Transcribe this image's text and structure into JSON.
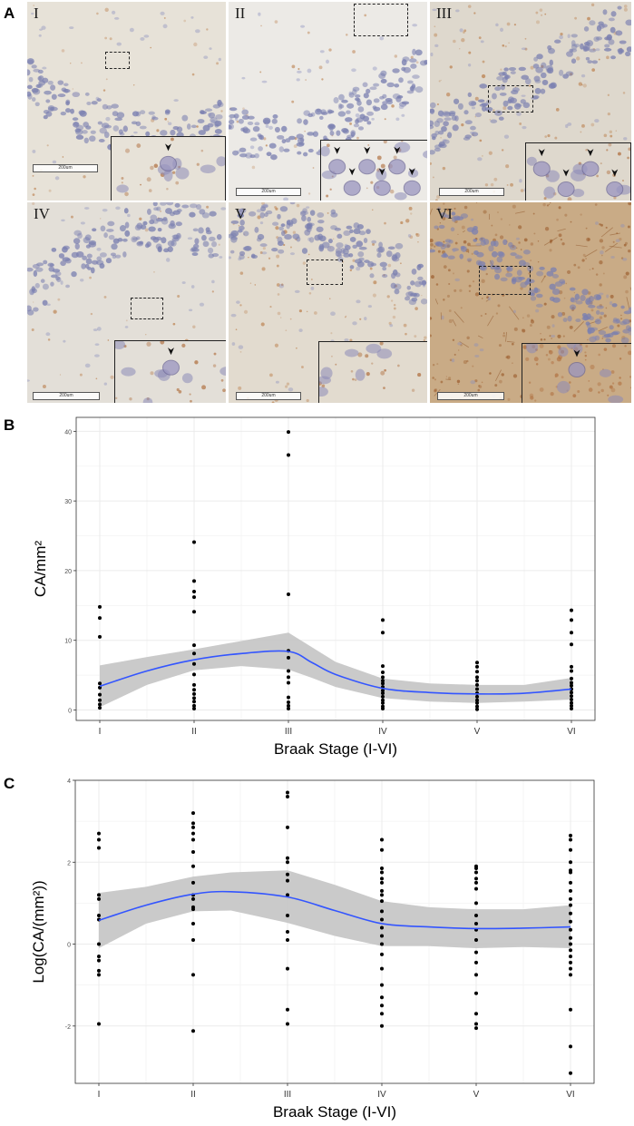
{
  "panels": {
    "a": "A",
    "b": "B",
    "c": "C"
  },
  "micrographs": [
    {
      "label": "I",
      "scalebar": "200um",
      "stain": "light",
      "arrowheads": 1
    },
    {
      "label": "II",
      "scalebar": "200um",
      "stain": "light",
      "arrowheads": 6
    },
    {
      "label": "III",
      "scalebar": "200um",
      "stain": "medium",
      "arrowheads": 4
    },
    {
      "label": "IV",
      "scalebar": "200um",
      "stain": "light",
      "arrowheads": 1
    },
    {
      "label": "V",
      "scalebar": "200um",
      "stain": "medium",
      "arrowheads": 0
    },
    {
      "label": "VI",
      "scalebar": "200um",
      "stain": "heavy",
      "arrowheads": 1
    }
  ],
  "colors": {
    "smooth_line": "#3355ff",
    "ribbon": "#c4c4c4",
    "point": "#000000",
    "panel_bg": "#ffffff",
    "grid": "#ebebeb"
  },
  "chart_data": [
    {
      "type": "scatter",
      "title": "",
      "xlabel": "Braak Stage (I-VI)",
      "ylabel": "CA/mm²",
      "categories": [
        "I",
        "II",
        "III",
        "IV",
        "V",
        "VI"
      ],
      "ylim": [
        -1.5,
        42
      ],
      "yticks": [
        0,
        10,
        20,
        30,
        40
      ],
      "points": [
        [
          1,
          14.8
        ],
        [
          1,
          13.2
        ],
        [
          1,
          10.5
        ],
        [
          1,
          3.8
        ],
        [
          1,
          3.2
        ],
        [
          1,
          2.2
        ],
        [
          1,
          1.4
        ],
        [
          1,
          0.8
        ],
        [
          1,
          0.3
        ],
        [
          2,
          24.1
        ],
        [
          2,
          18.5
        ],
        [
          2,
          17.0
        ],
        [
          2,
          16.2
        ],
        [
          2,
          14.1
        ],
        [
          2,
          9.3
        ],
        [
          2,
          8.1
        ],
        [
          2,
          6.6
        ],
        [
          2,
          5.1
        ],
        [
          2,
          3.6
        ],
        [
          2,
          2.9
        ],
        [
          2,
          2.3
        ],
        [
          2,
          1.7
        ],
        [
          2,
          1.2
        ],
        [
          2,
          0.6
        ],
        [
          2,
          0.2
        ],
        [
          3,
          39.9
        ],
        [
          3,
          36.6
        ],
        [
          3,
          16.6
        ],
        [
          3,
          8.5
        ],
        [
          3,
          7.5
        ],
        [
          3,
          5.6
        ],
        [
          3,
          4.7
        ],
        [
          3,
          3.9
        ],
        [
          3,
          1.8
        ],
        [
          3,
          1.1
        ],
        [
          3,
          0.6
        ],
        [
          3,
          0.2
        ],
        [
          4,
          12.9
        ],
        [
          4,
          11.1
        ],
        [
          4,
          6.3
        ],
        [
          4,
          5.4
        ],
        [
          4,
          4.7
        ],
        [
          4,
          4.2
        ],
        [
          4,
          3.8
        ],
        [
          4,
          3.3
        ],
        [
          4,
          2.8
        ],
        [
          4,
          2.4
        ],
        [
          4,
          1.9
        ],
        [
          4,
          1.4
        ],
        [
          4,
          1.0
        ],
        [
          4,
          0.5
        ],
        [
          4,
          0.2
        ],
        [
          5,
          6.8
        ],
        [
          5,
          6.2
        ],
        [
          5,
          5.5
        ],
        [
          5,
          4.7
        ],
        [
          5,
          4.2
        ],
        [
          5,
          3.6
        ],
        [
          5,
          3.0
        ],
        [
          5,
          2.4
        ],
        [
          5,
          1.9
        ],
        [
          5,
          1.4
        ],
        [
          5,
          1.0
        ],
        [
          5,
          0.5
        ],
        [
          5,
          0.1
        ],
        [
          6,
          14.3
        ],
        [
          6,
          12.9
        ],
        [
          6,
          11.1
        ],
        [
          6,
          9.4
        ],
        [
          6,
          6.2
        ],
        [
          6,
          5.6
        ],
        [
          6,
          4.5
        ],
        [
          6,
          3.9
        ],
        [
          6,
          3.5
        ],
        [
          6,
          3.0
        ],
        [
          6,
          2.5
        ],
        [
          6,
          2.0
        ],
        [
          6,
          1.5
        ],
        [
          6,
          1.0
        ],
        [
          6,
          0.6
        ],
        [
          6,
          0.2
        ]
      ],
      "smooth": {
        "x": [
          1,
          1.5,
          2,
          2.5,
          3,
          3.25,
          3.5,
          4,
          4.5,
          5,
          5.5,
          6
        ],
        "fit": [
          3.4,
          5.6,
          7.2,
          8.1,
          8.4,
          6.8,
          5.1,
          3.1,
          2.5,
          2.3,
          2.4,
          3.0
        ],
        "lower": [
          0.4,
          3.6,
          5.7,
          6.3,
          5.8,
          4.6,
          3.3,
          1.7,
          1.2,
          1.0,
          1.2,
          1.5
        ],
        "upper": [
          6.4,
          7.6,
          8.7,
          9.9,
          11.1,
          9.0,
          6.9,
          4.5,
          3.8,
          3.6,
          3.6,
          4.6
        ]
      }
    },
    {
      "type": "scatter",
      "title": "",
      "xlabel": "Braak Stage (I-VI)",
      "ylabel": "Log(CA/(mm²))",
      "categories": [
        "I",
        "II",
        "III",
        "IV",
        "V",
        "VI"
      ],
      "ylim": [
        -3.4,
        4.0
      ],
      "yticks": [
        -2,
        0,
        2,
        4
      ],
      "points": [
        [
          1,
          2.7
        ],
        [
          1,
          2.55
        ],
        [
          1,
          2.35
        ],
        [
          1,
          1.2
        ],
        [
          1,
          1.1
        ],
        [
          1,
          0.7
        ],
        [
          1,
          0.6
        ],
        [
          1,
          0.0
        ],
        [
          1,
          -0.3
        ],
        [
          1,
          -0.4
        ],
        [
          1,
          -0.65
        ],
        [
          1,
          -0.75
        ],
        [
          1,
          -1.95
        ],
        [
          2,
          3.2
        ],
        [
          2,
          2.95
        ],
        [
          2,
          2.85
        ],
        [
          2,
          2.7
        ],
        [
          2,
          2.55
        ],
        [
          2,
          2.25
        ],
        [
          2,
          1.9
        ],
        [
          2,
          1.5
        ],
        [
          2,
          1.2
        ],
        [
          2,
          1.1
        ],
        [
          2,
          0.9
        ],
        [
          2,
          0.85
        ],
        [
          2,
          0.5
        ],
        [
          2,
          0.1
        ],
        [
          2,
          -0.75
        ],
        [
          2,
          -2.12
        ],
        [
          3,
          3.7
        ],
        [
          3,
          3.6
        ],
        [
          3,
          2.85
        ],
        [
          3,
          2.1
        ],
        [
          3,
          2.0
        ],
        [
          3,
          1.7
        ],
        [
          3,
          1.55
        ],
        [
          3,
          1.2
        ],
        [
          3,
          0.7
        ],
        [
          3,
          0.3
        ],
        [
          3,
          0.1
        ],
        [
          3,
          -0.6
        ],
        [
          3,
          -1.6
        ],
        [
          3,
          -1.95
        ],
        [
          4,
          2.55
        ],
        [
          4,
          2.3
        ],
        [
          4,
          1.85
        ],
        [
          4,
          1.75
        ],
        [
          4,
          1.6
        ],
        [
          4,
          1.5
        ],
        [
          4,
          1.3
        ],
        [
          4,
          1.2
        ],
        [
          4,
          1.05
        ],
        [
          4,
          0.8
        ],
        [
          4,
          0.6
        ],
        [
          4,
          0.4
        ],
        [
          4,
          0.2
        ],
        [
          4,
          0.0
        ],
        [
          4,
          -0.25
        ],
        [
          4,
          -0.6
        ],
        [
          4,
          -1.0
        ],
        [
          4,
          -1.3
        ],
        [
          4,
          -1.5
        ],
        [
          4,
          -1.7
        ],
        [
          4,
          -2.0
        ],
        [
          5,
          1.9
        ],
        [
          5,
          1.85
        ],
        [
          5,
          1.75
        ],
        [
          5,
          1.6
        ],
        [
          5,
          1.5
        ],
        [
          5,
          1.35
        ],
        [
          5,
          1.0
        ],
        [
          5,
          0.7
        ],
        [
          5,
          0.5
        ],
        [
          5,
          0.35
        ],
        [
          5,
          0.1
        ],
        [
          5,
          -0.2
        ],
        [
          5,
          -0.45
        ],
        [
          5,
          -0.75
        ],
        [
          5,
          -1.2
        ],
        [
          5,
          -1.7
        ],
        [
          5,
          -1.95
        ],
        [
          5,
          -2.05
        ],
        [
          6,
          2.65
        ],
        [
          6,
          2.55
        ],
        [
          6,
          2.3
        ],
        [
          6,
          2.0
        ],
        [
          6,
          1.8
        ],
        [
          6,
          1.75
        ],
        [
          6,
          1.5
        ],
        [
          6,
          1.3
        ],
        [
          6,
          1.1
        ],
        [
          6,
          0.95
        ],
        [
          6,
          0.75
        ],
        [
          6,
          0.55
        ],
        [
          6,
          0.35
        ],
        [
          6,
          0.15
        ],
        [
          6,
          0.0
        ],
        [
          6,
          -0.15
        ],
        [
          6,
          -0.3
        ],
        [
          6,
          -0.45
        ],
        [
          6,
          -0.6
        ],
        [
          6,
          -0.75
        ],
        [
          6,
          -1.6
        ],
        [
          6,
          -2.5
        ],
        [
          6,
          -3.15
        ]
      ],
      "smooth": {
        "x": [
          1,
          1.5,
          2,
          2.4,
          3,
          3.5,
          4,
          4.5,
          5,
          5.5,
          6
        ],
        "fit": [
          0.58,
          0.95,
          1.22,
          1.28,
          1.15,
          0.82,
          0.5,
          0.42,
          0.38,
          0.39,
          0.42
        ],
        "lower": [
          -0.1,
          0.5,
          0.8,
          0.82,
          0.52,
          0.2,
          -0.05,
          -0.05,
          -0.1,
          -0.07,
          -0.1
        ],
        "upper": [
          1.25,
          1.4,
          1.65,
          1.75,
          1.8,
          1.45,
          1.05,
          0.9,
          0.85,
          0.85,
          0.95
        ]
      }
    }
  ]
}
